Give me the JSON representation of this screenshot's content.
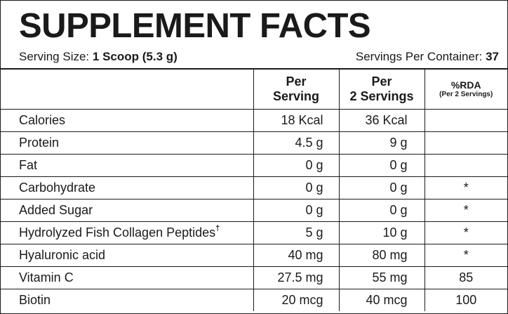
{
  "title": "SUPPLEMENT FACTS",
  "serving": {
    "size_label": "Serving Size: ",
    "size_value": "1 Scoop (5.3 g)",
    "per_container_label": "Servings Per Container: ",
    "per_container_value": "37"
  },
  "columns": {
    "per_serving_line1": "Per",
    "per_serving_line2": "Serving",
    "per_two_line1": "Per",
    "per_two_line2": "2 Servings",
    "rda_line1": "%RDA",
    "rda_line2": "(Per 2 Servings)"
  },
  "rows": [
    {
      "name": "Calories",
      "mark": "",
      "per_serving": "18 Kcal",
      "per_two": "36 Kcal",
      "rda": ""
    },
    {
      "name": "Protein",
      "mark": "",
      "per_serving": "4.5 g",
      "per_two": "9 g",
      "rda": ""
    },
    {
      "name": "Fat",
      "mark": "",
      "per_serving": "0 g",
      "per_two": "0 g",
      "rda": ""
    },
    {
      "name": "Carbohydrate",
      "mark": "",
      "per_serving": "0 g",
      "per_two": "0 g",
      "rda": "*"
    },
    {
      "name": "Added Sugar",
      "mark": "",
      "per_serving": "0 g",
      "per_two": "0 g",
      "rda": "*"
    },
    {
      "name": "Hydrolyzed Fish Collagen Peptides",
      "mark": "†",
      "per_serving": "5 g",
      "per_two": "10 g",
      "rda": "*"
    },
    {
      "name": "Hyaluronic acid",
      "mark": "",
      "per_serving": "40 mg",
      "per_two": "80 mg",
      "rda": "*"
    },
    {
      "name": "Vitamin C",
      "mark": "",
      "per_serving": "27.5 mg",
      "per_two": "55 mg",
      "rda": "85"
    },
    {
      "name": "Biotin",
      "mark": "",
      "per_serving": "20 mcg",
      "per_two": "40 mcg",
      "rda": "100"
    }
  ]
}
